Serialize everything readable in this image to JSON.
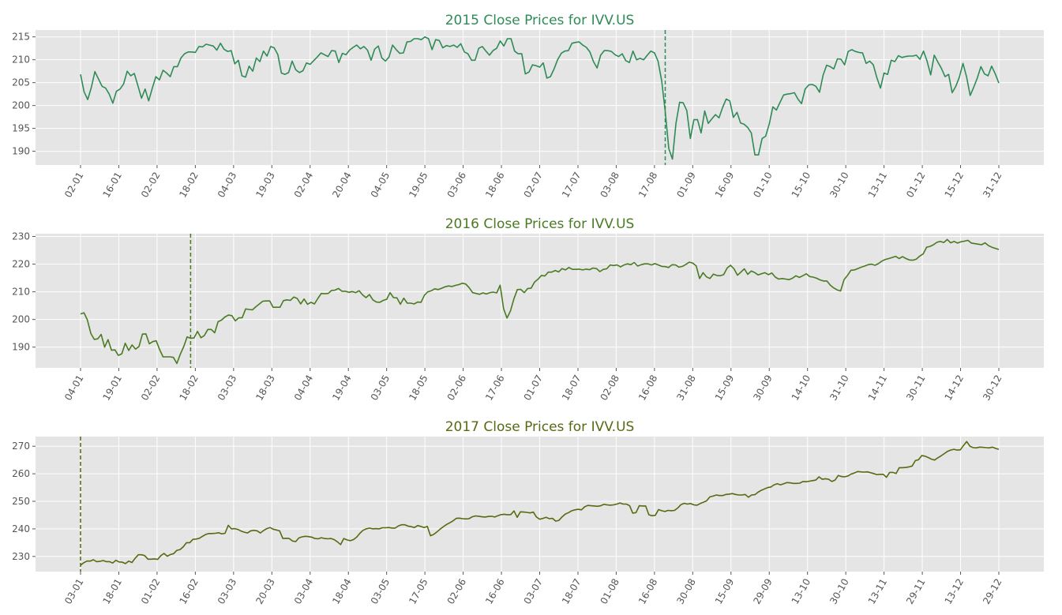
{
  "chart_data": [
    {
      "type": "line",
      "title": "2015 Close Prices for IVV.US",
      "color": "#2e8b57",
      "y_ticks": [
        190,
        195,
        200,
        205,
        210,
        215
      ],
      "ylim": [
        187,
        216.5
      ],
      "x_tick_labels": [
        "02-01",
        "16-01",
        "02-02",
        "18-02",
        "04-03",
        "19-03",
        "02-04",
        "20-04",
        "04-05",
        "19-05",
        "03-06",
        "18-06",
        "02-07",
        "17-07",
        "03-08",
        "17-08",
        "01-09",
        "16-09",
        "01-10",
        "15-10",
        "30-10",
        "13-11",
        "01-12",
        "15-12",
        "31-12"
      ],
      "vline_index": 163,
      "grid": true,
      "series": [
        {
          "values": [
            206.8,
            203.0,
            201.3,
            203.9,
            207.4,
            205.8,
            204.2,
            203.8,
            202.5,
            200.5,
            203.1,
            203.6,
            204.7,
            207.5,
            206.5,
            207.0,
            204.3,
            201.6,
            203.6,
            201.0,
            203.8,
            206.3,
            205.6,
            207.7,
            207.1,
            206.3,
            208.5,
            208.5,
            210.4,
            211.3,
            211.7,
            211.7,
            211.6,
            212.9,
            212.8,
            213.4,
            213.2,
            213.0,
            212.1,
            213.6,
            212.3,
            211.8,
            212.0,
            209.1,
            209.9,
            206.5,
            206.2,
            208.6,
            207.5,
            210.4,
            209.6,
            211.9,
            210.8,
            212.9,
            212.6,
            211.1,
            207.1,
            206.8,
            207.2,
            209.7,
            207.8,
            207.2,
            207.6,
            209.3,
            209.0,
            209.8,
            210.6,
            211.5,
            211.1,
            210.7,
            212.0,
            211.9,
            209.4,
            211.4,
            211.1,
            212.1,
            212.7,
            213.2,
            212.4,
            212.9,
            212.1,
            209.9,
            212.3,
            213.0,
            210.4,
            209.7,
            210.6,
            213.2,
            212.2,
            211.4,
            211.5,
            213.9,
            214.0,
            214.6,
            214.6,
            214.4,
            215.0,
            214.6,
            212.2,
            214.4,
            214.2,
            212.6,
            213.1,
            212.9,
            213.2,
            212.7,
            213.5,
            211.7,
            211.3,
            209.9,
            209.9,
            212.5,
            212.9,
            211.9,
            211.0,
            212.0,
            212.5,
            214.1,
            213.0,
            214.6,
            214.6,
            211.9,
            211.3,
            211.3,
            206.9,
            207.3,
            208.9,
            208.7,
            208.4,
            209.3,
            206.0,
            206.3,
            208.0,
            210.0,
            211.4,
            211.9,
            212.0,
            213.6,
            213.8,
            213.9,
            213.2,
            212.7,
            211.7,
            209.6,
            208.2,
            211.0,
            212.0,
            212.0,
            211.8,
            211.1,
            210.7,
            211.3,
            209.8,
            209.4,
            211.9,
            210.0,
            210.3,
            210.0,
            211.0,
            211.9,
            211.5,
            209.7,
            205.4,
            198.7,
            190.6,
            188.3,
            196.1,
            200.7,
            200.6,
            198.9,
            192.8,
            196.9,
            196.9,
            194.0,
            198.8,
            196.1,
            197.1,
            198.0,
            197.3,
            199.6,
            201.4,
            201.0,
            197.4,
            198.5,
            196.2,
            195.9,
            195.2,
            194.0,
            189.2,
            189.2,
            192.8,
            193.3,
            196.0,
            199.7,
            199.0,
            200.7,
            202.3,
            202.5,
            202.6,
            202.8,
            201.4,
            200.4,
            203.6,
            204.5,
            204.6,
            204.2,
            202.9,
            206.6,
            208.8,
            208.5,
            208.0,
            210.2,
            210.1,
            208.9,
            211.8,
            212.2,
            211.8,
            211.6,
            211.5,
            209.2,
            209.7,
            208.9,
            206.1,
            203.8,
            207.1,
            206.8,
            209.9,
            209.6,
            210.9,
            210.5,
            210.7,
            210.8,
            210.8,
            211.0,
            210.1,
            211.9,
            209.7,
            206.7,
            211.0,
            209.5,
            208.1,
            206.3,
            206.8,
            202.8,
            204.2,
            206.2,
            209.2,
            206.3,
            202.2,
            204.0,
            206.0,
            208.5,
            206.9,
            206.5,
            208.6,
            206.9,
            204.9
          ]
        }
      ]
    },
    {
      "type": "line",
      "title": "2016 Close Prices for IVV.US",
      "color": "#4a7a22",
      "y_ticks": [
        190,
        200,
        210,
        220,
        230
      ],
      "ylim": [
        182.5,
        231
      ],
      "x_tick_labels": [
        "04-01",
        "19-01",
        "02-02",
        "18-02",
        "03-03",
        "18-03",
        "04-04",
        "19-04",
        "03-05",
        "18-05",
        "02-06",
        "17-06",
        "01-07",
        "18-07",
        "02-08",
        "16-08",
        "31-08",
        "15-09",
        "30-09",
        "14-10",
        "31-10",
        "14-11",
        "30-11",
        "14-12",
        "30-12"
      ],
      "vline_index": 32,
      "grid": true,
      "series": [
        {
          "values": [
            202.0,
            202.4,
            199.8,
            194.9,
            192.8,
            193.0,
            194.6,
            190.0,
            192.7,
            188.9,
            189.0,
            187.0,
            187.6,
            191.4,
            188.8,
            190.8,
            189.3,
            190.2,
            194.7,
            194.8,
            191.2,
            192.0,
            192.3,
            189.1,
            186.5,
            186.5,
            186.5,
            186.3,
            184.1,
            187.4,
            190.2,
            193.7,
            193.2,
            193.3,
            195.7,
            193.4,
            194.2,
            196.4,
            196.4,
            195.2,
            199.2,
            199.8,
            200.9,
            201.6,
            201.4,
            199.5,
            200.6,
            200.6,
            203.8,
            203.6,
            203.5,
            204.6,
            205.6,
            206.6,
            206.7,
            206.7,
            204.4,
            204.4,
            204.4,
            206.8,
            207.1,
            206.9,
            208.1,
            207.6,
            205.6,
            207.4,
            205.5,
            206.2,
            205.6,
            207.6,
            209.4,
            209.3,
            209.4,
            210.5,
            210.6,
            211.2,
            210.2,
            210.2,
            209.8,
            210.1,
            209.7,
            210.4,
            208.9,
            207.9,
            209.0,
            207.1,
            206.3,
            206.2,
            206.9,
            207.3,
            209.7,
            207.9,
            207.8,
            205.5,
            207.7,
            205.9,
            205.9,
            205.6,
            206.3,
            206.2,
            208.8,
            210.0,
            210.4,
            211.1,
            210.8,
            211.3,
            211.8,
            212.1,
            211.9,
            212.3,
            212.6,
            213.1,
            212.8,
            211.5,
            209.7,
            209.4,
            209.1,
            209.6,
            209.2,
            209.7,
            209.9,
            209.6,
            212.4,
            203.9,
            200.5,
            203.1,
            207.4,
            210.8,
            210.9,
            209.7,
            211.2,
            211.3,
            213.5,
            214.5,
            215.9,
            215.7,
            217.1,
            217.1,
            217.7,
            217.2,
            218.4,
            217.9,
            218.8,
            218.1,
            218.1,
            218.2,
            217.9,
            218.2,
            218.0,
            218.6,
            218.4,
            217.3,
            218.1,
            218.3,
            219.7,
            219.5,
            219.7,
            219.0,
            219.7,
            220.1,
            219.8,
            220.6,
            219.3,
            219.8,
            220.1,
            220.1,
            219.7,
            220.2,
            219.7,
            219.2,
            219.1,
            218.8,
            219.8,
            219.7,
            218.9,
            219.2,
            219.9,
            220.7,
            220.4,
            219.4,
            214.8,
            216.9,
            215.4,
            214.8,
            216.4,
            215.9,
            215.8,
            216.2,
            218.6,
            219.6,
            218.3,
            216.0,
            217.1,
            218.3,
            216.3,
            217.5,
            217.0,
            216.1,
            216.5,
            216.9,
            216.2,
            216.8,
            215.3,
            214.6,
            214.8,
            214.6,
            214.4,
            214.9,
            215.8,
            215.2,
            215.8,
            216.5,
            215.5,
            215.3,
            214.9,
            214.3,
            213.9,
            213.9,
            212.4,
            211.4,
            210.7,
            210.3,
            214.4,
            215.9,
            217.8,
            217.9,
            218.4,
            218.9,
            219.3,
            219.8,
            220.0,
            219.6,
            220.2,
            221.1,
            221.7,
            222.0,
            222.4,
            222.8,
            222.0,
            222.7,
            222.0,
            221.5,
            221.4,
            221.8,
            222.9,
            223.7,
            226.1,
            226.4,
            227.0,
            227.9,
            228.2,
            227.8,
            228.9,
            227.7,
            228.2,
            227.6,
            228.1,
            228.3,
            228.6,
            227.6,
            227.4,
            227.2,
            227.0,
            227.7,
            226.7,
            226.1,
            225.7,
            225.3
          ]
        }
      ]
    },
    {
      "type": "line",
      "title": "2017 Close Prices for IVV.US",
      "color": "#556b11",
      "y_ticks": [
        230,
        240,
        250,
        260,
        270
      ],
      "ylim": [
        224.5,
        273.5
      ],
      "x_tick_labels": [
        "03-01",
        "18-01",
        "01-02",
        "16-02",
        "03-03",
        "20-03",
        "03-04",
        "18-04",
        "03-05",
        "17-05",
        "02-06",
        "16-06",
        "03-07",
        "18-07",
        "01-08",
        "16-08",
        "30-08",
        "15-09",
        "29-09",
        "13-10",
        "30-10",
        "13-11",
        "29-11",
        "13-12",
        "29-12"
      ],
      "vline_index": 0,
      "grid": true,
      "series": [
        {
          "values": [
            226.8,
            227.7,
            228.3,
            228.3,
            228.8,
            228.1,
            228.2,
            228.5,
            228.1,
            228.1,
            227.6,
            228.6,
            228.0,
            227.9,
            227.4,
            228.3,
            227.8,
            229.3,
            230.6,
            230.6,
            230.3,
            229.0,
            229.0,
            229.1,
            228.9,
            230.3,
            231.1,
            230.1,
            230.7,
            231.0,
            232.2,
            232.5,
            233.5,
            235.0,
            235.0,
            236.2,
            236.3,
            236.6,
            237.3,
            238.0,
            238.3,
            238.3,
            238.4,
            238.6,
            238.2,
            238.4,
            241.3,
            240.0,
            240.1,
            239.8,
            239.2,
            238.8,
            238.5,
            239.3,
            239.5,
            239.3,
            238.5,
            239.4,
            240.1,
            240.5,
            239.9,
            239.6,
            239.3,
            236.5,
            236.6,
            236.5,
            235.6,
            235.4,
            236.7,
            237.1,
            237.3,
            237.2,
            237.0,
            236.5,
            236.4,
            236.8,
            236.5,
            236.4,
            236.5,
            236.1,
            235.3,
            234.3,
            236.5,
            236.0,
            235.7,
            236.1,
            237.0,
            238.4,
            239.5,
            240.0,
            240.3,
            240.0,
            240.1,
            240.0,
            240.4,
            240.4,
            240.5,
            240.3,
            240.3,
            241.1,
            241.5,
            241.5,
            241.0,
            240.8,
            240.5,
            241.2,
            240.9,
            240.5,
            240.9,
            237.5,
            238.0,
            238.9,
            239.9,
            240.8,
            241.6,
            242.2,
            242.9,
            243.8,
            243.9,
            243.7,
            243.6,
            243.7,
            244.4,
            244.7,
            244.6,
            244.4,
            244.3,
            244.5,
            244.6,
            244.3,
            244.8,
            245.2,
            245.3,
            245.1,
            245.2,
            246.5,
            244.2,
            246.2,
            246.1,
            246.0,
            245.8,
            246.1,
            244.3,
            243.5,
            243.8,
            244.2,
            243.7,
            243.8,
            242.8,
            243.1,
            244.4,
            245.4,
            245.9,
            246.6,
            246.9,
            247.1,
            246.9,
            248.0,
            248.5,
            248.4,
            248.3,
            248.2,
            248.4,
            248.9,
            248.7,
            248.6,
            248.7,
            249.0,
            249.4,
            249.0,
            249.0,
            248.4,
            245.7,
            245.9,
            248.4,
            248.3,
            248.3,
            245.1,
            244.8,
            244.9,
            247.0,
            246.6,
            246.3,
            246.7,
            246.6,
            246.7,
            247.6,
            248.8,
            249.3,
            249.0,
            249.2,
            248.7,
            248.6,
            249.2,
            249.7,
            250.2,
            251.6,
            251.9,
            252.3,
            252.1,
            252.1,
            252.5,
            252.6,
            252.8,
            252.5,
            252.3,
            252.3,
            252.5,
            251.5,
            252.3,
            252.4,
            253.3,
            254.0,
            254.5,
            255.0,
            255.2,
            256.0,
            256.4,
            256.0,
            256.4,
            256.8,
            256.7,
            256.5,
            256.5,
            256.6,
            257.2,
            257.1,
            257.3,
            257.5,
            257.7,
            258.9,
            258.0,
            258.2,
            258.0,
            257.2,
            257.7,
            259.4,
            259.0,
            258.9,
            259.2,
            259.9,
            260.3,
            260.8,
            260.7,
            260.6,
            260.7,
            260.4,
            260.1,
            259.7,
            259.8,
            259.8,
            258.7,
            260.5,
            260.5,
            260.1,
            262.2,
            262.2,
            262.3,
            262.5,
            262.8,
            264.8,
            265.1,
            266.6,
            266.4,
            265.9,
            265.3,
            265.0,
            265.8,
            266.5,
            267.3,
            268.1,
            268.6,
            268.9,
            268.6,
            268.7,
            270.3,
            271.7,
            270.0,
            269.5,
            269.4,
            269.7,
            269.6,
            269.5,
            269.4,
            269.7,
            269.2,
            268.9
          ]
        }
      ]
    }
  ]
}
